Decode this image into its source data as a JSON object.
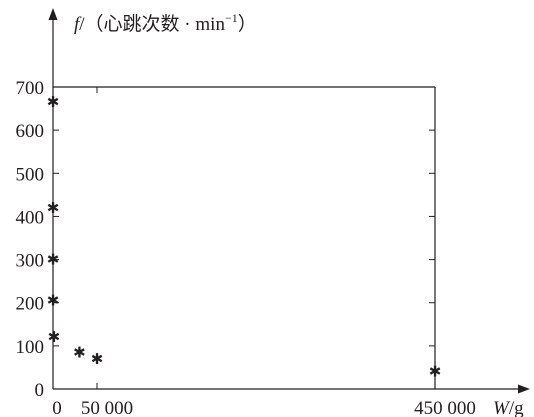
{
  "chart_data": {
    "type": "scatter",
    "title": "",
    "y_axis": {
      "symbol": "f",
      "label": "/（心跳次数 · min",
      "exponent": "−1",
      "close": "）",
      "ticks": [
        0,
        100,
        200,
        300,
        400,
        500,
        600,
        700
      ],
      "tick_labels": [
        "0",
        "100",
        "200",
        "300",
        "400",
        "500",
        "600",
        "700"
      ],
      "range": [
        0,
        700
      ]
    },
    "x_axis": {
      "label_symbol": "W",
      "label_unit": "/g",
      "tick_labels": [
        "0",
        "50 000",
        "450 000"
      ],
      "tick_values": [
        0,
        50000,
        450000
      ],
      "range": [
        0,
        450000
      ]
    },
    "grid": false,
    "points": [
      {
        "x": 0,
        "y": 665
      },
      {
        "x": 0,
        "y": 420
      },
      {
        "x": 0,
        "y": 300
      },
      {
        "x": 0,
        "y": 205
      },
      {
        "x": 1000,
        "y": 120
      },
      {
        "x": 30000,
        "y": 85
      },
      {
        "x": 50000,
        "y": 70
      },
      {
        "x": 450000,
        "y": 40
      }
    ],
    "marker": "✱",
    "color": "#231f20"
  }
}
